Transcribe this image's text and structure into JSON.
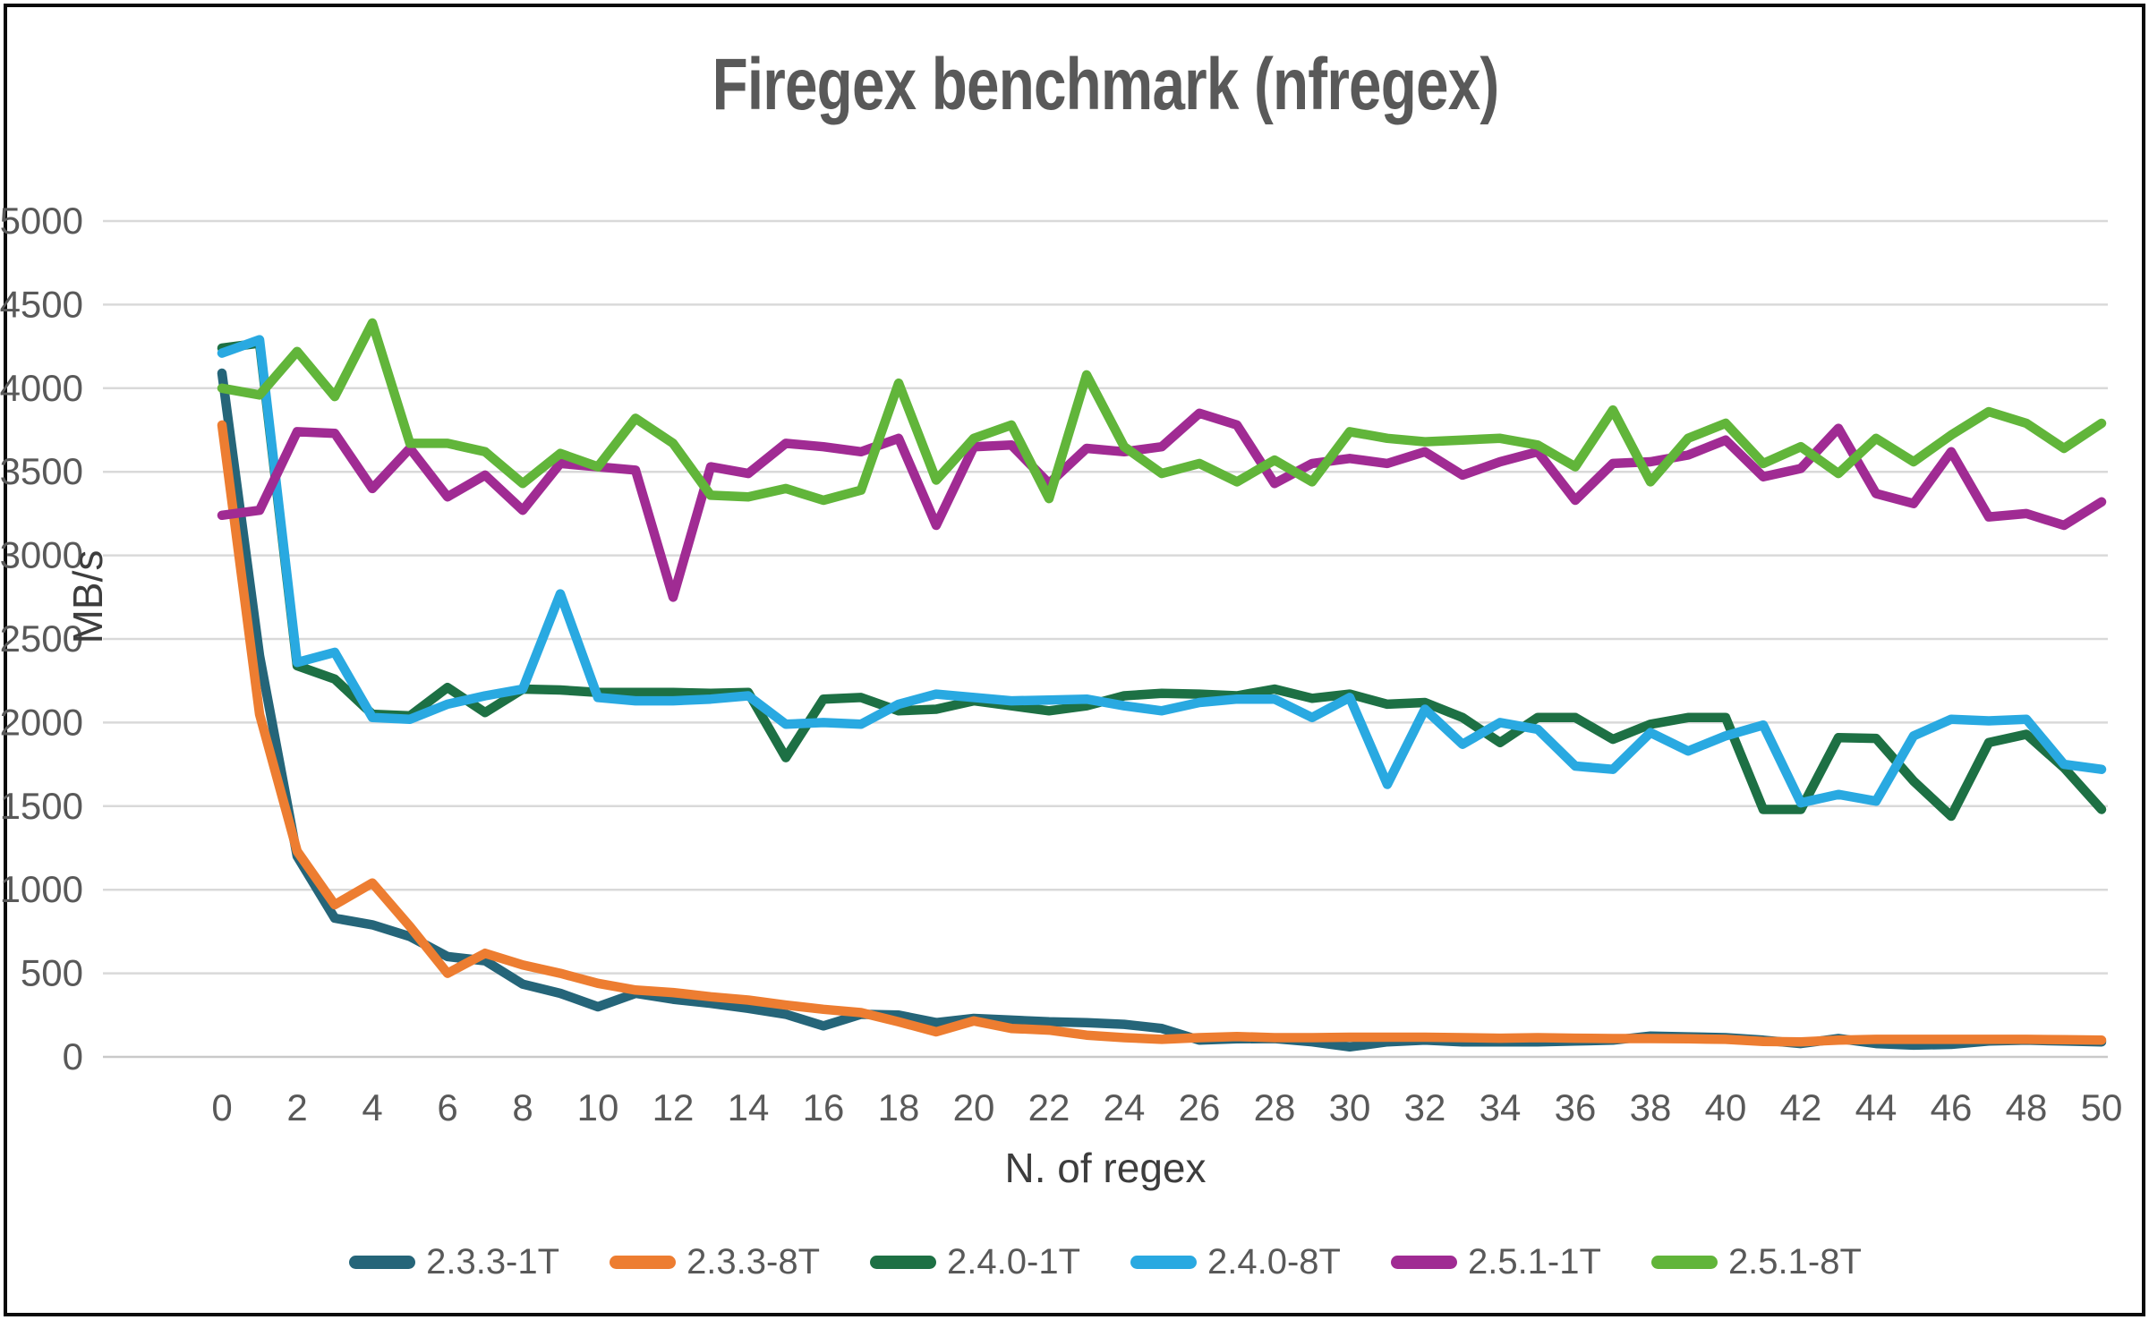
{
  "chart_data": {
    "type": "line",
    "title": "Firegex benchmark (nfregex)",
    "xlabel": "N. of regex",
    "ylabel": "MB/s",
    "xlim": [
      0,
      50
    ],
    "ylim": [
      0,
      5000
    ],
    "grid": true,
    "legend_position": "bottom",
    "x_ticks": [
      0,
      2,
      4,
      6,
      8,
      10,
      12,
      14,
      16,
      18,
      20,
      22,
      24,
      26,
      28,
      30,
      32,
      34,
      36,
      38,
      40,
      42,
      44,
      46,
      48,
      50
    ],
    "y_ticks": [
      0,
      500,
      1000,
      1500,
      2000,
      2500,
      3000,
      3500,
      4000,
      4500,
      5000
    ],
    "x": [
      0,
      1,
      2,
      3,
      4,
      5,
      6,
      7,
      8,
      9,
      10,
      11,
      12,
      13,
      14,
      15,
      16,
      17,
      18,
      19,
      20,
      21,
      22,
      23,
      24,
      25,
      26,
      27,
      28,
      29,
      30,
      31,
      32,
      33,
      34,
      35,
      36,
      37,
      38,
      39,
      40,
      41,
      42,
      43,
      44,
      45,
      46,
      47,
      48,
      49,
      50
    ],
    "series": [
      {
        "name": "2.3.3-1T",
        "color": "#256579",
        "values": [
          4090,
          2400,
          1200,
          830,
          790,
          720,
          600,
          575,
          435,
          380,
          300,
          380,
          345,
          320,
          290,
          255,
          185,
          255,
          250,
          205,
          230,
          220,
          210,
          205,
          195,
          170,
          100,
          108,
          110,
          90,
          60,
          90,
          100,
          90,
          90,
          90,
          95,
          100,
          125,
          120,
          115,
          100,
          80,
          110,
          80,
          70,
          75,
          95,
          100,
          95,
          90
        ]
      },
      {
        "name": "2.3.3-8T",
        "color": "#ED7D31",
        "values": [
          3780,
          2050,
          1230,
          910,
          1040,
          780,
          500,
          620,
          550,
          500,
          440,
          400,
          385,
          360,
          340,
          310,
          285,
          265,
          210,
          150,
          215,
          170,
          160,
          130,
          115,
          105,
          115,
          122,
          115,
          115,
          118,
          118,
          118,
          115,
          112,
          115,
          112,
          110,
          110,
          108,
          105,
          92,
          90,
          100,
          105,
          105,
          105,
          105,
          105,
          103,
          100
        ]
      },
      {
        "name": "2.4.0-1T",
        "color": "#1D7044",
        "values": [
          4240,
          4270,
          2340,
          2260,
          2050,
          2040,
          2210,
          2060,
          2200,
          2195,
          2180,
          2180,
          2180,
          2175,
          2180,
          1790,
          2140,
          2150,
          2070,
          2080,
          2130,
          2100,
          2070,
          2100,
          2160,
          2175,
          2170,
          2160,
          2200,
          2145,
          2170,
          2110,
          2120,
          2030,
          1880,
          2030,
          2030,
          1900,
          1990,
          2030,
          2030,
          1480,
          1480,
          1910,
          1905,
          1650,
          1440,
          1880,
          1930,
          1730,
          1480
        ]
      },
      {
        "name": "2.4.0-8T",
        "color": "#29A9E1",
        "values": [
          4210,
          4290,
          2360,
          2420,
          2030,
          2020,
          2110,
          2160,
          2200,
          2770,
          2150,
          2130,
          2130,
          2140,
          2160,
          1990,
          2000,
          1990,
          2110,
          2170,
          2150,
          2130,
          2135,
          2140,
          2100,
          2070,
          2120,
          2140,
          2140,
          2030,
          2150,
          1630,
          2080,
          1870,
          2000,
          1960,
          1740,
          1720,
          1940,
          1830,
          1920,
          1985,
          1520,
          1570,
          1530,
          1920,
          2020,
          2010,
          2020,
          1750,
          1720
        ]
      },
      {
        "name": "2.5.1-1T",
        "color": "#A02B93",
        "values": [
          3240,
          3270,
          3740,
          3730,
          3400,
          3640,
          3350,
          3480,
          3270,
          3550,
          3530,
          3510,
          2750,
          3530,
          3490,
          3670,
          3650,
          3620,
          3700,
          3180,
          3650,
          3660,
          3430,
          3640,
          3620,
          3650,
          3850,
          3780,
          3430,
          3550,
          3580,
          3550,
          3620,
          3480,
          3560,
          3620,
          3330,
          3550,
          3560,
          3600,
          3690,
          3470,
          3520,
          3760,
          3370,
          3310,
          3620,
          3230,
          3250,
          3180,
          3320
        ]
      },
      {
        "name": "2.5.1-8T",
        "color": "#61B53A",
        "values": [
          4000,
          3960,
          4220,
          3950,
          4390,
          3670,
          3670,
          3620,
          3430,
          3610,
          3530,
          3820,
          3670,
          3360,
          3350,
          3400,
          3330,
          3390,
          4030,
          3450,
          3700,
          3780,
          3340,
          4080,
          3650,
          3490,
          3550,
          3440,
          3570,
          3440,
          3740,
          3700,
          3680,
          3690,
          3700,
          3660,
          3530,
          3870,
          3440,
          3700,
          3790,
          3550,
          3650,
          3490,
          3700,
          3560,
          3720,
          3860,
          3790,
          3640,
          3790
        ]
      }
    ],
    "style": {
      "gridline_color": "#D9D9D9",
      "axis_line_color": "#C9C9C9",
      "tick_label_color": "#595959",
      "title_color": "#595959",
      "background": "#FFFFFF",
      "border_color": "#0A0A0A"
    }
  }
}
